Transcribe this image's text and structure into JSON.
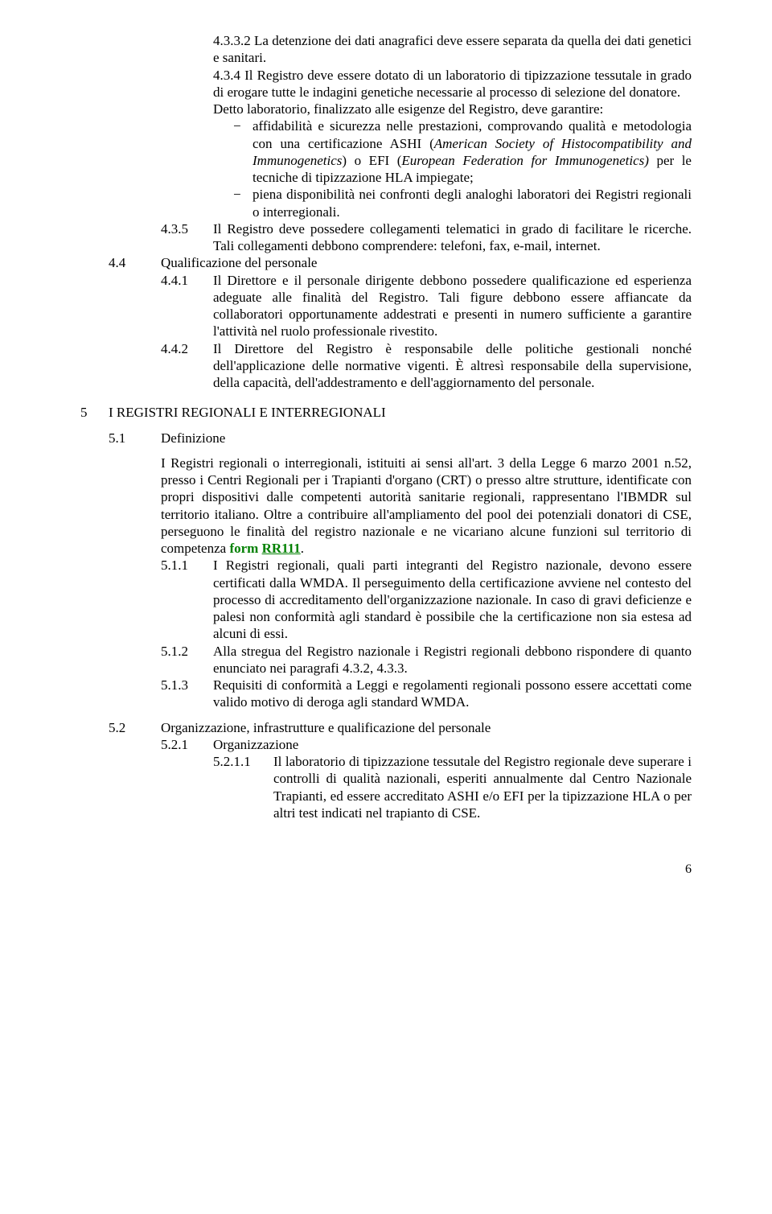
{
  "s432a": "4.3.3.2 La detenzione dei dati anagrafici deve essere separata da quella dei dati genetici e sanitari.",
  "s434a": "4.3.4 Il Registro deve essere dotato di un laboratorio di tipizzazione tessutale in grado di erogare tutte le indagini genetiche necessarie al processo di selezione del donatore.",
  "s434b": "Detto laboratorio, finalizzato alle esigenze del Registro, deve garantire:",
  "b1a": "affidabilità e sicurezza nelle prestazioni, comprovando qualità e metodologia con una certificazione ASHI (",
  "b1i1": "American Society of Histocompatibility and Immunogenetics",
  "b1b": ") o EFI (",
  "b1i2": "European Federation for Immunogenetics)",
  "b1c": " per le tecniche di tipizzazione HLA impiegate;",
  "b2": "piena disponibilità nei confronti degli analoghi laboratori dei Registri regionali o interregionali.",
  "s435n": "4.3.5",
  "s435t": "Il Registro deve possedere collegamenti telematici in grado di facilitare le ricerche. Tali collegamenti debbono comprendere: telefoni, fax, e-mail, internet.",
  "s44n": "4.4",
  "s44t": "Qualificazione del personale",
  "s441n": "4.4.1",
  "s441t": "Il Direttore e il personale dirigente debbono possedere qualificazione ed esperienza adeguate alle finalità del Registro. Tali figure debbono essere affiancate da collaboratori opportunamente addestrati e presenti in numero sufficiente a garantire l'attività nel ruolo professionale rivestito.",
  "s442n": "4.4.2",
  "s442t": "Il Direttore del Registro è responsabile delle politiche gestionali nonché dell'applicazione delle normative vigenti. È altresì responsabile della supervisione, della capacità, dell'addestramento e dell'aggiornamento del personale.",
  "s5n": "5",
  "s5t": "I REGISTRI REGIONALI E INTERREGIONALI",
  "s51n": "5.1",
  "s51t": "Definizione",
  "s51b1": "I Registri regionali o interregionali, istituiti ai sensi all'art. 3 della Legge 6 marzo 2001 n.52, presso i Centri Regionali per i Trapianti d'organo (CRT) o presso altre strutture, identificate con propri dispositivi dalle competenti autorità sanitarie regionali, rappresentano l'IBMDR sul territorio italiano. Oltre a contribuire all'ampliamento del pool dei potenziali donatori di CSE, perseguono le finalità del registro nazionale e ne vicariano alcune funzioni sul territorio di competenza ",
  "formword": "form",
  "formcode": "RR111",
  "dot": ".",
  "s511n": "5.1.1",
  "s511t": "I Registri regionali, quali parti integranti del Registro nazionale, devono essere certificati dalla WMDA. Il perseguimento della certificazione avviene nel contesto del processo di accreditamento dell'organizzazione nazionale. In caso di gravi deficienze e palesi non conformità agli standard è possibile che la certificazione non sia estesa ad alcuni di essi.",
  "s512n": "5.1.2",
  "s512t": "Alla stregua del Registro nazionale i Registri regionali debbono rispondere di quanto enunciato nei paragrafi 4.3.2, 4.3.3.",
  "s513n": "5.1.3",
  "s513t": "Requisiti di conformità a Leggi e regolamenti regionali possono essere accettati come valido motivo di deroga agli standard WMDA.",
  "s52n": "5.2",
  "s52t": "Organizzazione, infrastrutture e qualificazione del personale",
  "s521n": "5.2.1",
  "s521t": "Organizzazione",
  "s5211n": "5.2.1.1",
  "s5211t": "Il laboratorio di tipizzazione tessutale del Registro regionale deve superare i controlli di qualità nazionali, esperiti annualmente dal Centro Nazionale Trapianti, ed essere accreditato ASHI e/o EFI per la tipizzazione HLA o per altri test indicati nel trapianto di CSE.",
  "pagenum": "6",
  "dash": "−"
}
